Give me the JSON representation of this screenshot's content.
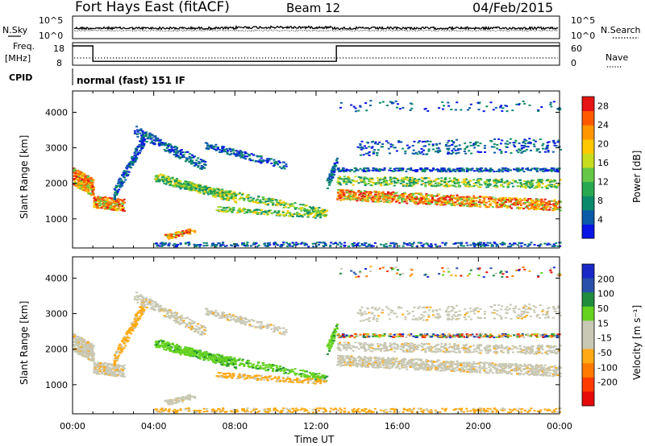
{
  "header": {
    "station": "Fort Hays East (fitACF)",
    "beam": "Beam 12",
    "date": "04/Feb/2015"
  },
  "noise_panel": {
    "left_label": "N.Sky",
    "right_label": "N.Search",
    "top_tick": "10^5",
    "bottom_tick": "10^0"
  },
  "freq_panel": {
    "left_label_line1": "Freq.",
    "left_label_line2": "[MHz]",
    "right_label": "Nave",
    "left_ticks": [
      "18",
      "8"
    ],
    "right_ticks": [
      "60",
      "0"
    ],
    "freq_steps": [
      {
        "start": 0.0,
        "end": 1.0,
        "value": 18
      },
      {
        "start": 1.0,
        "end": 13.0,
        "value": 10
      },
      {
        "start": 13.0,
        "end": 24.0,
        "value": 18
      }
    ]
  },
  "cpid": {
    "label": "CPID",
    "value": "normal (fast) 151 IF"
  },
  "chart_data": [
    {
      "type": "heatmap",
      "title": "Power",
      "xlabel": "",
      "ylabel": "Slant Range [km]",
      "x_range": [
        0,
        24
      ],
      "ylim": [
        180,
        4600
      ],
      "y_ticks": [
        "1000",
        "2000",
        "3000",
        "4000"
      ],
      "colorbar": {
        "label": "Power [dB]",
        "ticks": [
          "4",
          "8",
          "12",
          "16",
          "20",
          "24",
          "28"
        ],
        "range": [
          0,
          30
        ],
        "colors": [
          "#0a14e6",
          "#0a5aa8",
          "#0a8a6a",
          "#28a850",
          "#64c846",
          "#c8dc1e",
          "#ffc800",
          "#ff9600",
          "#ff5a00",
          "#e61414"
        ]
      }
    },
    {
      "type": "heatmap",
      "title": "Velocity",
      "xlabel": "Time UT",
      "ylabel": "Slant Range [km]",
      "x_range": [
        0,
        24
      ],
      "ylim": [
        180,
        4600
      ],
      "x_ticks": [
        "00:00",
        "04:00",
        "08:00",
        "12:00",
        "16:00",
        "20:00",
        "00:00"
      ],
      "y_ticks": [
        "1000",
        "2000",
        "3000",
        "4000"
      ],
      "colorbar": {
        "label": "Velocity [m s⁻¹]",
        "ticks": [
          "200",
          "100",
          "50",
          "15",
          "-15",
          "-50",
          "-100",
          "-200"
        ],
        "colors": [
          "#1a28c8",
          "#2850aa",
          "#1e8c3c",
          "#64d21e",
          "#c8c8b4",
          "#c8c8b4",
          "#ffaa14",
          "#ff7a00",
          "#ff3c00",
          "#e60a0a"
        ]
      }
    }
  ]
}
